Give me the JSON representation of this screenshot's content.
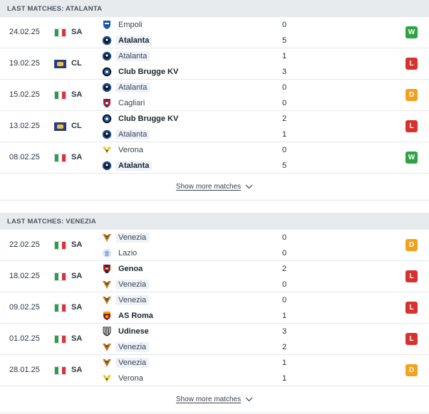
{
  "sections": [
    {
      "title": "LAST MATCHES: ATALANTA",
      "show_more": "Show more matches",
      "matches": [
        {
          "date": "24.02.25",
          "flag": "italy",
          "comp": "SA",
          "home": "Empoli",
          "home_crest": "empoli",
          "away": "Atalanta",
          "away_crest": "atalanta",
          "home_score": "0",
          "away_score": "5",
          "result": "W",
          "winner": "away",
          "highlight": "away"
        },
        {
          "date": "19.02.25",
          "flag": "ucl",
          "comp": "CL",
          "home": "Atalanta",
          "home_crest": "atalanta",
          "away": "Club Brugge KV",
          "away_crest": "brugge",
          "home_score": "1",
          "away_score": "3",
          "result": "L",
          "winner": "away",
          "highlight": "home"
        },
        {
          "date": "15.02.25",
          "flag": "italy",
          "comp": "SA",
          "home": "Atalanta",
          "home_crest": "atalanta",
          "away": "Cagliari",
          "away_crest": "cagliari",
          "home_score": "0",
          "away_score": "0",
          "result": "D",
          "winner": "none",
          "highlight": "home"
        },
        {
          "date": "13.02.25",
          "flag": "ucl",
          "comp": "CL",
          "home": "Club Brugge KV",
          "home_crest": "brugge",
          "away": "Atalanta",
          "away_crest": "atalanta",
          "home_score": "2",
          "away_score": "1",
          "result": "L",
          "winner": "home",
          "highlight": "away"
        },
        {
          "date": "08.02.25",
          "flag": "italy",
          "comp": "SA",
          "home": "Verona",
          "home_crest": "verona",
          "away": "Atalanta",
          "away_crest": "atalanta",
          "home_score": "0",
          "away_score": "5",
          "result": "W",
          "winner": "away",
          "highlight": "away"
        }
      ]
    },
    {
      "title": "LAST MATCHES: VENEZIA",
      "show_more": "Show more matches",
      "matches": [
        {
          "date": "22.02.25",
          "flag": "italy",
          "comp": "SA",
          "home": "Venezia",
          "home_crest": "venezia",
          "away": "Lazio",
          "away_crest": "lazio",
          "home_score": "0",
          "away_score": "0",
          "result": "D",
          "winner": "none",
          "highlight": "home"
        },
        {
          "date": "18.02.25",
          "flag": "italy",
          "comp": "SA",
          "home": "Genoa",
          "home_crest": "genoa",
          "away": "Venezia",
          "away_crest": "venezia",
          "home_score": "2",
          "away_score": "0",
          "result": "L",
          "winner": "home",
          "highlight": "away"
        },
        {
          "date": "09.02.25",
          "flag": "italy",
          "comp": "SA",
          "home": "Venezia",
          "home_crest": "venezia",
          "away": "AS Roma",
          "away_crest": "roma",
          "home_score": "0",
          "away_score": "1",
          "result": "L",
          "winner": "away",
          "highlight": "home"
        },
        {
          "date": "01.02.25",
          "flag": "italy",
          "comp": "SA",
          "home": "Udinese",
          "home_crest": "udinese",
          "away": "Venezia",
          "away_crest": "venezia",
          "home_score": "3",
          "away_score": "2",
          "result": "L",
          "winner": "home",
          "highlight": "away"
        },
        {
          "date": "28.01.25",
          "flag": "italy",
          "comp": "SA",
          "home": "Venezia",
          "home_crest": "venezia",
          "away": "Verona",
          "away_crest": "verona",
          "home_score": "1",
          "away_score": "1",
          "result": "D",
          "winner": "none",
          "highlight": "home"
        }
      ]
    }
  ],
  "colors": {
    "win": "#2ea343",
    "loss": "#d8322f",
    "draw": "#f5a11a",
    "header_bg": "#e8ebee"
  }
}
